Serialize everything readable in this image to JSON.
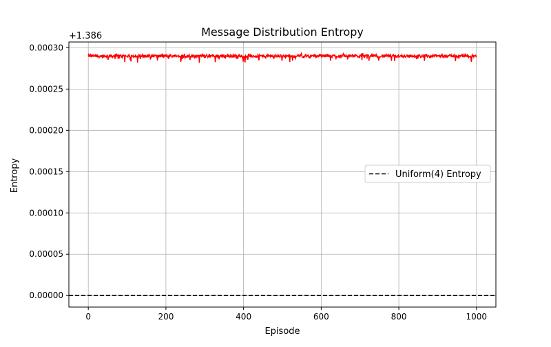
{
  "chart_data": {
    "type": "line",
    "title": "Message Distribution Entropy",
    "xlabel": "Episode",
    "ylabel": "Entropy",
    "offset_text": "+1.386",
    "xlim": [
      -50,
      1050
    ],
    "ylim": [
      -1.4e-05,
      0.000307
    ],
    "x_ticks": [
      0,
      200,
      400,
      600,
      800,
      1000
    ],
    "x_tick_labels": [
      "0",
      "200",
      "400",
      "600",
      "800",
      "1000"
    ],
    "y_ticks": [
      0.0,
      5e-05,
      0.0001,
      0.00015,
      0.0002,
      0.00025,
      0.0003
    ],
    "y_tick_labels": [
      "0.00000",
      "0.00005",
      "0.00010",
      "0.00015",
      "0.00020",
      "0.00025",
      "0.00030"
    ],
    "grid": true,
    "legend": {
      "placement": "center-right",
      "entries": [
        {
          "label": "Uniform(4) Entropy",
          "style": "dashed",
          "color": "#000000"
        }
      ]
    },
    "series": [
      {
        "name": "",
        "color": "#ff0000",
        "style": "solid",
        "x_range": [
          0,
          1000
        ],
        "mean": 0.00029,
        "band": [
          0.000282,
          0.000293
        ],
        "note_values": "approximately constant noisy line near 0.00029 offset"
      },
      {
        "name": "Uniform(4) Entropy",
        "color": "#000000",
        "style": "dashed",
        "x_range": [
          -50,
          1050
        ],
        "value": 0.0
      }
    ]
  }
}
